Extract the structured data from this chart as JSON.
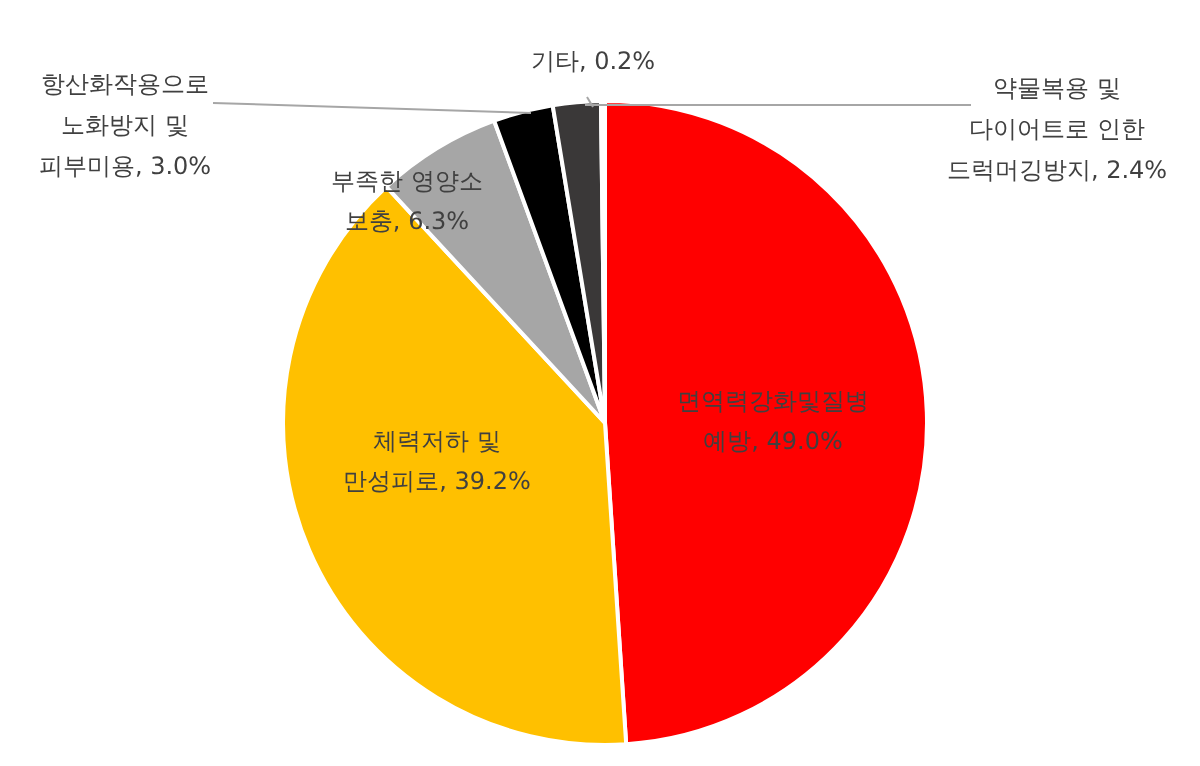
{
  "chart_data": {
    "type": "pie",
    "categories": [
      "면역력강화및질병\n예방",
      "체력저하 및\n만성피로",
      "부족한 영양소\n보충",
      "항산화작용으로\n노화방지 및\n피부미용",
      "약물복용 및\n다이어트로 인한\n드럭머깅방지",
      "기타"
    ],
    "values": [
      49.0,
      39.2,
      6.3,
      3.0,
      2.4,
      0.2
    ],
    "value_labels": [
      "49.0%",
      "39.2%",
      "6.3%",
      "3.0%",
      "2.4%",
      "0.2%"
    ],
    "colors": [
      "#ff0000",
      "#ffc000",
      "#a6a6a6",
      "#000000",
      "#3a3838",
      "#ffffff"
    ]
  }
}
